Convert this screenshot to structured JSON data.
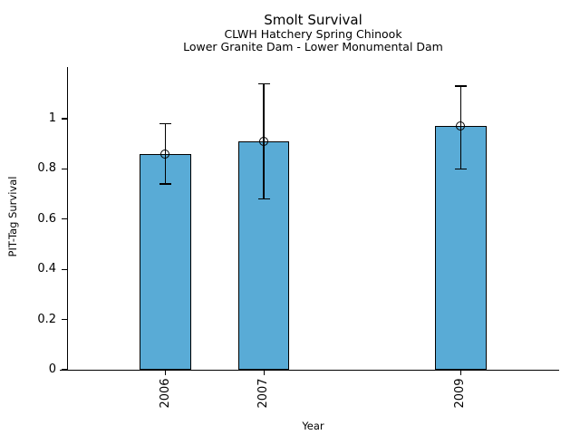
{
  "chart_data": {
    "type": "bar",
    "title": "Smolt Survival",
    "subtitle1": "CLWH Hatchery Spring Chinook",
    "subtitle2": "Lower Granite Dam - Lower Monumental Dam",
    "xlabel": "Year",
    "ylabel": "PIT-Tag Survival",
    "categories": [
      2006,
      2007,
      2009
    ],
    "values": [
      0.86,
      0.91,
      0.97
    ],
    "error_low": [
      0.74,
      0.68,
      0.8
    ],
    "error_high": [
      0.98,
      1.14,
      1.13
    ],
    "y_ticks": [
      0,
      0.2,
      0.4,
      0.6,
      0.8,
      1
    ],
    "y_tick_labels": [
      "0",
      "0.2",
      "0.4",
      "0.6",
      "0.8",
      "1"
    ],
    "x_tick_labels": [
      "2006",
      "2007",
      "2009"
    ],
    "xlim": [
      2005,
      2010
    ],
    "ylim": [
      0,
      1.206
    ],
    "bar_width_years": 0.52,
    "bar_color": "#59abd6",
    "bar_edge_color": "#000000",
    "error_color": "#000000",
    "marker": "open-circle",
    "grid": false,
    "legend": "none"
  }
}
